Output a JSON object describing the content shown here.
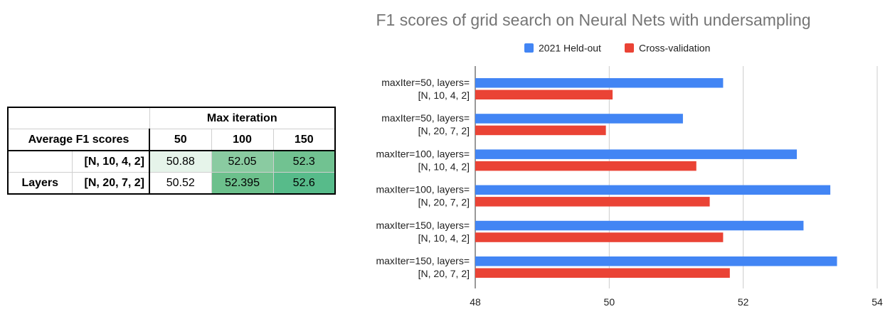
{
  "table": {
    "corner_label": "Average F1 scores",
    "group_header": "Max iteration",
    "columns": [
      "50",
      "100",
      "150"
    ],
    "row_group_label": "Layers",
    "rows": [
      {
        "label": "[N, 10, 4, 2]",
        "values": [
          "50.88",
          "52.05",
          "52.3"
        ],
        "colors": [
          "#e6f4ea",
          "#8acba1",
          "#71c291"
        ]
      },
      {
        "label": "[N, 20, 7, 2]",
        "values": [
          "50.52",
          "52.395",
          "52.6"
        ],
        "colors": [
          "#ffffff",
          "#6cc08c",
          "#57bb8a"
        ]
      }
    ]
  },
  "chart_data": {
    "type": "bar",
    "orientation": "horizontal",
    "title": "F1 scores of grid search on Neural Nets with undersampling",
    "categories": [
      [
        "maxIter=50, layers=",
        "[N, 10, 4, 2]"
      ],
      [
        "maxIter=50, layers=",
        "[N, 20, 7, 2]"
      ],
      [
        "maxIter=100, layers=",
        "[N, 10, 4, 2]"
      ],
      [
        "maxIter=100, layers=",
        "[N, 20, 7, 2]"
      ],
      [
        "maxIter=150, layers=",
        "[N, 10, 4, 2]"
      ],
      [
        "maxIter=150, layers=",
        "[N, 20, 7, 2]"
      ]
    ],
    "series": [
      {
        "name": "2021 Held-out",
        "color": "#4285f4",
        "values": [
          51.7,
          51.1,
          52.8,
          53.3,
          52.9,
          53.4
        ]
      },
      {
        "name": "Cross-validation",
        "color": "#ea4335",
        "values": [
          50.05,
          49.95,
          51.3,
          51.5,
          51.7,
          51.8
        ]
      }
    ],
    "xlim": [
      48,
      54
    ],
    "xticks": [
      "48",
      "50",
      "52",
      "54"
    ],
    "legend_position": "top",
    "grid": true
  }
}
